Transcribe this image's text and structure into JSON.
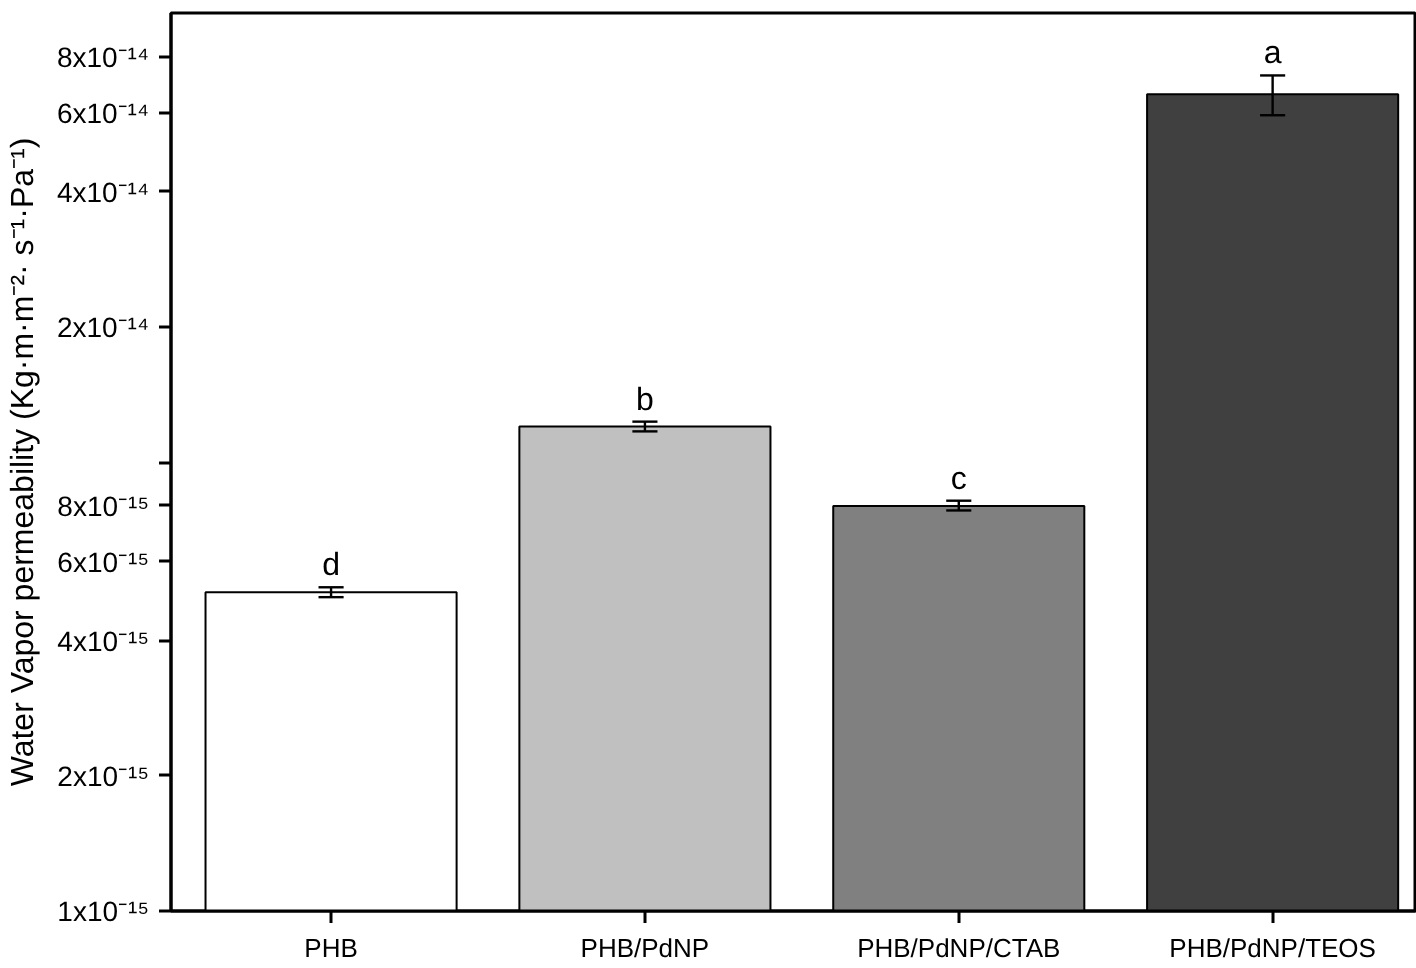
{
  "chart_data": {
    "type": "bar",
    "ylabel": "Water Vapor permeability (Kg·m·m⁻²· s⁻¹·Pa⁻¹)",
    "categories": [
      "PHB",
      "PHB/PdNP",
      "PHB/PdNP/CTAB",
      "PHB/PdNP/TEOS"
    ],
    "values": [
      5.13e-15,
      1.2e-14,
      7.98e-15,
      6.59e-14
    ],
    "colors": [
      "#ffffff",
      "#c0c0c0",
      "#808080",
      "#404040"
    ],
    "errors": [
      [
        5e-15,
        5.26e-15
      ],
      [
        1.17e-14,
        1.23e-14
      ],
      [
        7.8e-15,
        8.2e-15
      ],
      [
        5.92e-14,
        7.26e-14
      ]
    ],
    "log": "y",
    "ylim": [
      1e-15,
      1e-13
    ],
    "yticks": [
      {
        "value": 1e-15,
        "label": "1x10⁻¹⁵"
      },
      {
        "value": 2e-15,
        "label": "2x10⁻¹⁵"
      },
      {
        "value": 4e-15,
        "label": "4x10⁻¹⁵"
      },
      {
        "value": 6e-15,
        "label": "6x10⁻¹⁵"
      },
      {
        "value": 8e-15,
        "label": "8x10⁻¹⁵"
      },
      {
        "value": 1e-14,
        "label": null
      },
      {
        "value": 2e-14,
        "label": "2x10⁻¹⁴"
      },
      {
        "value": 4e-14,
        "label": "4x10⁻¹⁴"
      },
      {
        "value": 6e-14,
        "label": "6x10⁻¹⁴"
      },
      {
        "value": 8e-14,
        "label": "8x10⁻¹⁴"
      }
    ],
    "annotations": [
      {
        "text": "d",
        "x": "PHB",
        "y": 5.26e-15
      },
      {
        "text": "b",
        "x": "PHB/PdNP",
        "y": 1.23e-14
      },
      {
        "text": "c",
        "x": "PHB/PdNP/CTAB",
        "y": 8.2e-15
      },
      {
        "text": "a",
        "x": "PHB/PdNP/TEOS",
        "y": 7.26e-14
      }
    ],
    "grid": false
  }
}
